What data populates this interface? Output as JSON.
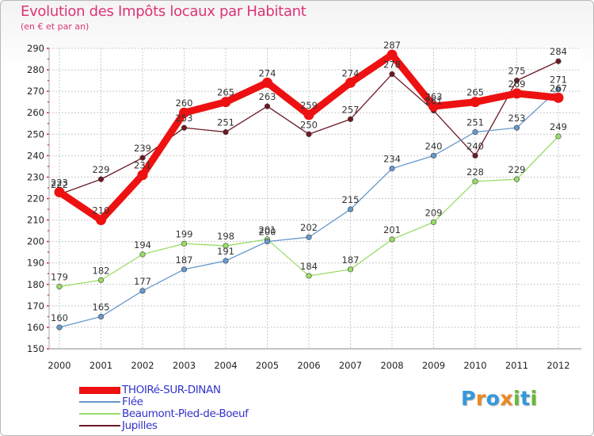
{
  "chart_data": {
    "type": "line",
    "title": "Evolution des Impôts locaux par Habitant",
    "subtitle": "(en € et par an)",
    "xlabel": "",
    "ylabel": "",
    "x": [
      "2000",
      "2001",
      "2002",
      "2003",
      "2004",
      "2005",
      "2006",
      "2007",
      "2008",
      "2009",
      "2010",
      "2011",
      "2012"
    ],
    "ylim": [
      150,
      290
    ],
    "yticks": [
      150,
      160,
      170,
      180,
      190,
      200,
      210,
      220,
      230,
      240,
      250,
      260,
      270,
      280,
      290
    ],
    "grid": true,
    "legend_position": "bottom-left",
    "series": [
      {
        "name": "Jupilles",
        "color": "#6b1a24",
        "values": [
          222,
          229,
          239,
          253,
          251,
          263,
          250,
          257,
          278,
          261,
          240,
          275,
          284
        ]
      },
      {
        "name": "Beaumont-Pied-de-Boeuf",
        "color": "#99dd66",
        "values": [
          179,
          182,
          194,
          199,
          198,
          201,
          184,
          187,
          201,
          209,
          228,
          229,
          249
        ]
      },
      {
        "name": "Flée",
        "color": "#6699cc",
        "values": [
          160,
          165,
          177,
          187,
          191,
          200,
          202,
          215,
          234,
          240,
          251,
          253,
          271
        ]
      },
      {
        "name": "THOIRé-SUR-DINAN",
        "color": "#ee1111",
        "values": [
          223,
          210,
          231,
          260,
          265,
          274,
          259,
          274,
          287,
          263,
          265,
          269,
          267
        ]
      }
    ]
  },
  "legend": {
    "items": [
      {
        "label": "THOIRé-SUR-DINAN",
        "color": "#ee1111",
        "thickness": 9
      },
      {
        "label": "Flée",
        "color": "#6699cc",
        "thickness": 2
      },
      {
        "label": "Beaumont-Pied-de-Boeuf",
        "color": "#99dd66",
        "thickness": 2
      },
      {
        "label": "Jupilles",
        "color": "#6b1a24",
        "thickness": 2
      }
    ]
  },
  "brand": {
    "name": "Proxiti",
    "letters": [
      {
        "ch": "P",
        "color": "#3399dd"
      },
      {
        "ch": "r",
        "color": "#ee8822"
      },
      {
        "ch": "o",
        "color": "#3399dd"
      },
      {
        "ch": "x",
        "color": "#ee8822"
      },
      {
        "ch": "i",
        "color": "#66bb33"
      },
      {
        "ch": "t",
        "color": "#3399dd"
      },
      {
        "ch": "i",
        "color": "#66bb33"
      }
    ]
  }
}
